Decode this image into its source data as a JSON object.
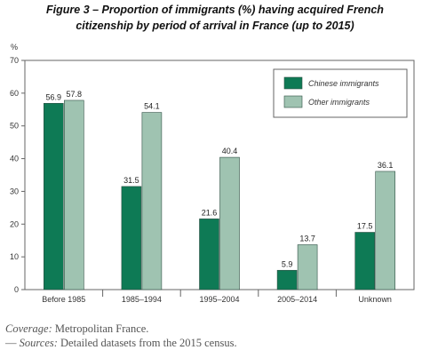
{
  "header": {
    "title_line1": "Figure 3 – Proportion of immigrants (%) having acquired French",
    "title_line2": "citizenship by period of arrival in France (up to 2015)"
  },
  "notes": {
    "coverage_label": "Coverage:",
    "coverage_text": " Metropolitan France.",
    "sources_prefix": "— ",
    "sources_label": "Sources:",
    "sources_text": " Detailed datasets from the 2015 census."
  },
  "chart_data": {
    "type": "bar",
    "categories": [
      "Before 1985",
      "1985–1994",
      "1995–2004",
      "2005–2014",
      "Unknown"
    ],
    "series": [
      {
        "name": "Chinese immigrants",
        "values": [
          56.9,
          31.5,
          21.6,
          5.9,
          17.5
        ],
        "color": "#0e7a55"
      },
      {
        "name": "Other immigrants",
        "values": [
          57.8,
          54.1,
          40.4,
          13.7,
          36.1
        ],
        "color": "#9fc3b1"
      }
    ],
    "ylabel": "%",
    "ylim": [
      0,
      70
    ],
    "yticks": [
      0,
      10,
      20,
      30,
      40,
      50,
      60,
      70
    ],
    "data_labels": true,
    "legend_position": "top-right",
    "grid": false,
    "frame_color": "#666666"
  }
}
